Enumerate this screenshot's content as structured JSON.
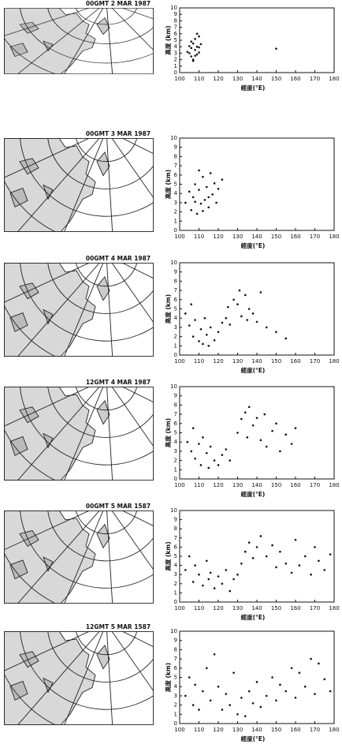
{
  "chart_data": [
    {
      "type": "scatter",
      "title": "00GMT 2 MAR 1987",
      "x_label": "經度(°E)",
      "y_label": "高度 (km)",
      "color": "#111",
      "xlim": [
        100,
        180
      ],
      "ylim": [
        0,
        10
      ],
      "xticks": [
        100,
        110,
        120,
        130,
        140,
        150,
        160,
        170,
        180
      ],
      "yticks": [
        0,
        1,
        2,
        3,
        4,
        5,
        6,
        7,
        8,
        9,
        10
      ],
      "x": [
        104,
        105,
        106,
        106,
        107,
        107,
        108,
        108,
        109,
        109,
        110,
        110,
        111,
        105,
        107,
        108,
        109,
        110,
        106,
        150
      ],
      "y": [
        3.2,
        4.1,
        2.5,
        3.8,
        4.5,
        2.0,
        3.5,
        5.2,
        2.8,
        4.0,
        3.1,
        5.6,
        4.4,
        3.0,
        1.8,
        2.6,
        6.0,
        3.9,
        4.8,
        3.7
      ]
    },
    {
      "type": "scatter",
      "title": "00GMT 3 MAR 1987",
      "x_label": "經度(°E)",
      "y_label": "高度 (km)",
      "color": "#111",
      "xlim": [
        100,
        180
      ],
      "ylim": [
        0,
        10
      ],
      "xticks": [
        100,
        110,
        120,
        130,
        140,
        150,
        160,
        170,
        180
      ],
      "yticks": [
        0,
        1,
        2,
        3,
        4,
        5,
        6,
        7,
        8,
        9,
        10
      ],
      "x": [
        103,
        105,
        106,
        107,
        108,
        109,
        110,
        111,
        112,
        113,
        114,
        115,
        116,
        117,
        118,
        119,
        120,
        122,
        108,
        112,
        115,
        110
      ],
      "y": [
        3.0,
        4.2,
        2.2,
        3.6,
        5.0,
        1.8,
        4.4,
        2.9,
        5.8,
        3.3,
        4.7,
        2.5,
        6.2,
        3.9,
        5.1,
        3.0,
        4.5,
        5.5,
        3.1,
        2.1,
        3.6,
        6.5
      ]
    },
    {
      "type": "scatter",
      "title": "00GMT 4 MAR 1987",
      "x_label": "經度(°E)",
      "y_label": "高度 (km)",
      "color": "#111",
      "xlim": [
        100,
        180
      ],
      "ylim": [
        0,
        10
      ],
      "xticks": [
        100,
        110,
        120,
        130,
        140,
        150,
        160,
        170,
        180
      ],
      "yticks": [
        0,
        1,
        2,
        3,
        4,
        5,
        6,
        7,
        8,
        9,
        10
      ],
      "x": [
        103,
        105,
        106,
        107,
        108,
        110,
        111,
        112,
        113,
        114,
        115,
        116,
        118,
        120,
        122,
        124,
        125,
        126,
        128,
        130,
        131,
        132,
        134,
        135,
        136,
        138,
        140,
        142,
        145,
        150,
        155
      ],
      "y": [
        4.5,
        3.2,
        5.5,
        2.0,
        3.8,
        1.5,
        2.8,
        1.2,
        4.0,
        2.2,
        1.0,
        3.0,
        1.6,
        2.5,
        3.5,
        4.0,
        5.2,
        3.3,
        6.0,
        5.5,
        7.0,
        4.2,
        6.5,
        3.8,
        5.0,
        4.5,
        3.6,
        6.8,
        3.0,
        2.5,
        1.8
      ]
    },
    {
      "type": "scatter",
      "title": "12GMT 4 MAR 1987",
      "x_label": "經度(°E)",
      "y_label": "高度 (km)",
      "color": "#111",
      "xlim": [
        100,
        180
      ],
      "ylim": [
        0,
        10
      ],
      "xticks": [
        100,
        110,
        120,
        130,
        140,
        150,
        160,
        170,
        180
      ],
      "yticks": [
        0,
        1,
        2,
        3,
        4,
        5,
        6,
        7,
        8,
        9,
        10
      ],
      "x": [
        104,
        106,
        107,
        108,
        110,
        111,
        112,
        114,
        115,
        116,
        118,
        120,
        122,
        124,
        126,
        130,
        132,
        134,
        135,
        136,
        138,
        140,
        142,
        144,
        145,
        148,
        150,
        152,
        155,
        158,
        160
      ],
      "y": [
        4.0,
        3.0,
        5.5,
        2.2,
        3.8,
        1.5,
        4.5,
        2.8,
        1.2,
        3.5,
        2.0,
        1.5,
        2.6,
        3.2,
        2.0,
        5.0,
        6.5,
        7.2,
        4.5,
        7.8,
        5.8,
        6.6,
        4.2,
        7.0,
        3.5,
        5.2,
        6.0,
        3.0,
        4.8,
        3.8,
        5.5
      ]
    },
    {
      "type": "scatter",
      "title": "00GMT 5 MAR 1587",
      "x_label": "經度(°E)",
      "y_label": "高度 (km)",
      "color": "#111",
      "xlim": [
        100,
        180
      ],
      "ylim": [
        0,
        10
      ],
      "xticks": [
        100,
        110,
        120,
        130,
        140,
        150,
        160,
        170,
        180
      ],
      "yticks": [
        0,
        1,
        2,
        3,
        4,
        5,
        6,
        7,
        8,
        9,
        10
      ],
      "x": [
        103,
        105,
        107,
        108,
        110,
        112,
        114,
        115,
        116,
        118,
        120,
        122,
        124,
        126,
        128,
        130,
        132,
        134,
        136,
        138,
        140,
        142,
        145,
        148,
        150,
        152,
        155,
        158,
        160,
        162,
        165,
        168,
        170,
        172,
        175,
        178
      ],
      "y": [
        3.5,
        5.0,
        2.2,
        4.0,
        3.0,
        1.8,
        4.5,
        2.5,
        3.2,
        1.5,
        2.8,
        2.0,
        3.5,
        1.2,
        2.5,
        3.0,
        4.2,
        5.5,
        6.5,
        4.8,
        6.0,
        7.2,
        5.0,
        6.2,
        3.8,
        5.5,
        4.2,
        3.2,
        6.8,
        4.0,
        5.0,
        3.0,
        6.0,
        4.5,
        3.5,
        5.2
      ]
    },
    {
      "type": "scatter",
      "title": "12GMT 5 MAR 1587",
      "x_label": "經度(°E)",
      "y_label": "高度 (km)",
      "color": "#111",
      "xlim": [
        100,
        180
      ],
      "ylim": [
        0,
        10
      ],
      "xticks": [
        100,
        110,
        120,
        130,
        140,
        150,
        160,
        170,
        180
      ],
      "yticks": [
        0,
        1,
        2,
        3,
        4,
        5,
        6,
        7,
        8,
        9,
        10
      ],
      "x": [
        103,
        105,
        107,
        108,
        110,
        112,
        114,
        116,
        118,
        120,
        122,
        124,
        126,
        128,
        130,
        132,
        134,
        136,
        138,
        140,
        142,
        145,
        148,
        150,
        152,
        155,
        158,
        160,
        162,
        165,
        168,
        170,
        172,
        175,
        178
      ],
      "y": [
        3.0,
        5.0,
        2.0,
        4.2,
        1.5,
        3.5,
        6.0,
        2.5,
        7.5,
        4.0,
        1.5,
        3.2,
        2.0,
        5.5,
        1.0,
        2.8,
        0.8,
        3.5,
        2.2,
        4.5,
        1.8,
        3.0,
        5.0,
        2.5,
        4.2,
        3.5,
        6.0,
        2.8,
        5.5,
        4.0,
        7.0,
        3.2,
        6.5,
        4.8,
        3.5
      ]
    }
  ]
}
